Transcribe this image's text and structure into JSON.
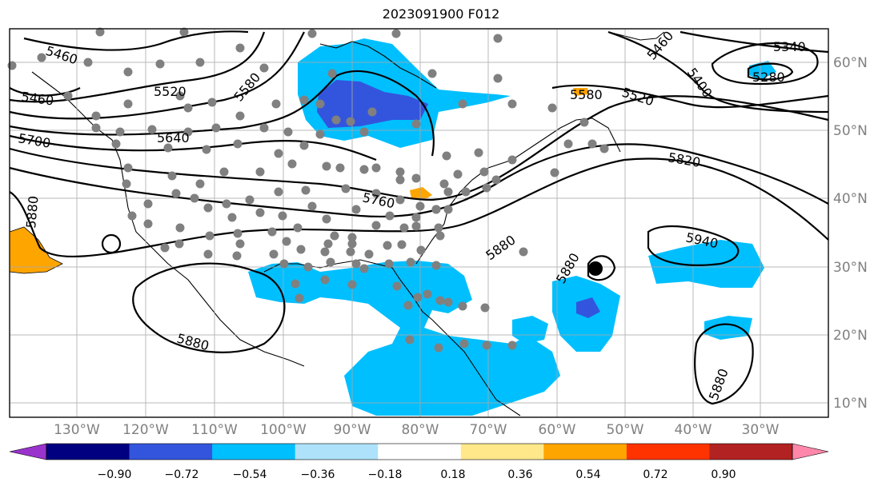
{
  "title": "2023091900 F012",
  "lon_labels": [
    "130°W",
    "120°W",
    "110°W",
    "100°W",
    "90°W",
    "80°W",
    "70°W",
    "60°W",
    "50°W",
    "40°W",
    "30°W"
  ],
  "lat_labels": [
    "60°N",
    "50°N",
    "40°N",
    "30°N",
    "20°N",
    "10°N"
  ],
  "contour_labels": [
    "5460",
    "5460",
    "5520",
    "5580",
    "5640",
    "5700",
    "5880",
    "5760",
    "5820",
    "5880",
    "5940",
    "5880",
    "5880",
    "5880",
    "5520",
    "5580",
    "5460",
    "5400",
    "5340",
    "5280"
  ],
  "colorbar": {
    "ticks": [
      "−0.90",
      "−0.72",
      "−0.54",
      "−0.36",
      "−0.18",
      "0.18",
      "0.36",
      "0.54",
      "0.72",
      "0.90"
    ],
    "colors": [
      "#9933cc",
      "#000080",
      "#3355dd",
      "#00bfff",
      "#aee2fb",
      "#ffffff",
      "#ffe88a",
      "#ffa500",
      "#ff3300",
      "#b22222",
      "#ff88aa"
    ]
  }
}
